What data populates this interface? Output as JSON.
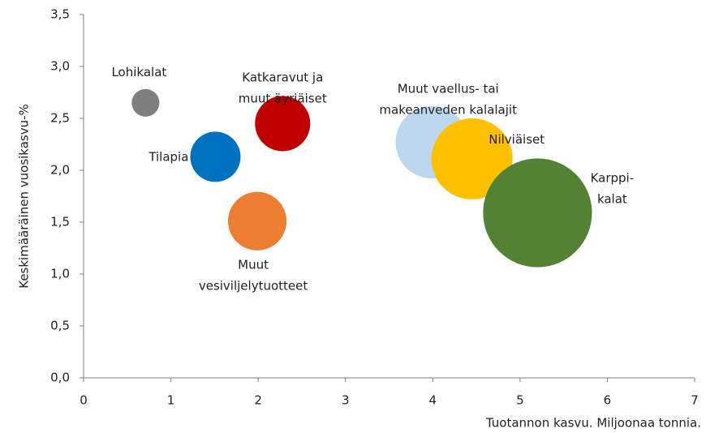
{
  "chart_data": {
    "type": "bubble",
    "xlabel": "Tuotannon kasvu. Miljoonaa tonnia.",
    "ylabel": "Keskimääräinen vuosikasvu-%",
    "xlim": [
      0,
      7
    ],
    "xticks": [
      0,
      1,
      2,
      3,
      4,
      5,
      6,
      7
    ],
    "ylim": [
      0,
      3.5
    ],
    "yticks": [
      {
        "value": 0,
        "label": "0,0"
      },
      {
        "value": 0.5,
        "label": "0,5"
      },
      {
        "value": 1,
        "label": "1,0"
      },
      {
        "value": 1.5,
        "label": "1,5"
      },
      {
        "value": 2,
        "label": "2,0"
      },
      {
        "value": 2.5,
        "label": "2,5"
      },
      {
        "value": 3,
        "label": "3,0"
      },
      {
        "value": 3.5,
        "label": "3,5"
      }
    ],
    "series": [
      {
        "name": "Lohikalat",
        "color": "#7f7f7f",
        "x": [
          0.71
        ],
        "values": [
          2.65
        ],
        "sizes": [
          2.9
        ]
      },
      {
        "name": "Tilapia",
        "color": "#0070c0",
        "x": [
          1.51
        ],
        "values": [
          2.13
        ],
        "sizes": [
          9.6
        ]
      },
      {
        "name": "Katkaravut ja\nmuut äyriäiset",
        "color": "#c00000",
        "x": [
          2.28
        ],
        "values": [
          2.45
        ],
        "sizes": [
          11.6
        ]
      },
      {
        "name": "Muut\nvesiviljelytuotteet",
        "color": "#ed7d31",
        "x": [
          1.99
        ],
        "values": [
          1.51
        ],
        "sizes": [
          13
        ]
      },
      {
        "name": "Muut vaellus- tai\nmakeanveden kalalajit",
        "color": "#bdd7ee",
        "x": [
          3.99
        ],
        "values": [
          2.27
        ],
        "sizes": [
          20
        ]
      },
      {
        "name": "Nilviäiset",
        "color": "#ffc000",
        "x": [
          4.45
        ],
        "values": [
          2.11
        ],
        "sizes": [
          25
        ]
      },
      {
        "name": "Karppi-\nkalat",
        "color": "#548235",
        "x": [
          5.2
        ],
        "values": [
          1.59
        ],
        "sizes": [
          45
        ]
      }
    ]
  }
}
